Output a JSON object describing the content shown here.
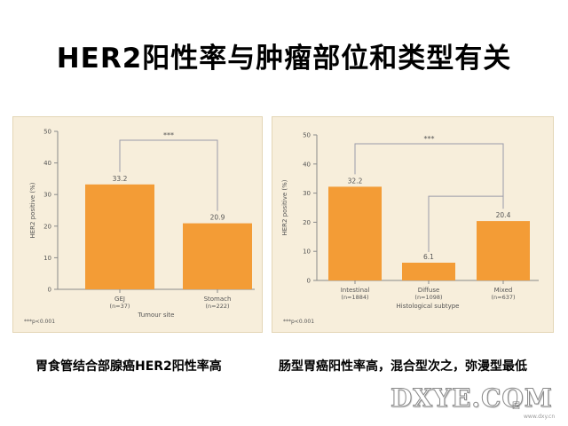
{
  "page": {
    "title": "HER2阳性率与肿瘤部位和类型有关",
    "caption_left": "胃食管结合部腺癌HER2阳性率高",
    "caption_right": "肠型胃癌阳性率高，混合型次之，弥漫型最低",
    "watermark": "DXYE.COM",
    "watermark_tag": "园",
    "watermark_url": "www.dxy.cn"
  },
  "colors": {
    "bar": "#f39c36",
    "panel_bg": "#f7eedb",
    "axis": "#8a8a8a",
    "text": "#555555",
    "bracket": "#9a9aa8"
  },
  "chart_data": [
    {
      "type": "bar",
      "categories": [
        "GEJ",
        "Stomach"
      ],
      "category_sublabels": [
        "(n=37)",
        "(n=222)"
      ],
      "values": [
        33.2,
        20.9
      ],
      "value_labels": [
        "33.2",
        "20.9"
      ],
      "ylabel": "HER2 positive (%)",
      "xlabel": "Tumour site",
      "ylim": [
        0,
        50
      ],
      "yticks": [
        0,
        10,
        20,
        30,
        40,
        50
      ],
      "significance": [
        {
          "pair": [
            0,
            1
          ],
          "label": "***"
        }
      ],
      "footnote": "***p<0.001",
      "grid": false
    },
    {
      "type": "bar",
      "categories": [
        "Intestinal",
        "Diffuse",
        "Mixed"
      ],
      "category_sublabels": [
        "(n=1884)",
        "(n=1098)",
        "(n=637)"
      ],
      "values": [
        32.2,
        6.1,
        20.4
      ],
      "value_labels": [
        "32.2",
        "6.1",
        "20.4"
      ],
      "ylabel": "HER2 positive (%)",
      "xlabel": "Histological subtype",
      "ylim": [
        0,
        50
      ],
      "yticks": [
        0,
        10,
        20,
        30,
        40,
        50
      ],
      "significance": [
        {
          "pair": [
            0,
            2
          ],
          "label": "***"
        },
        {
          "pair": [
            1,
            2
          ],
          "label": ""
        }
      ],
      "footnote": "***p<0.001",
      "grid": false
    }
  ]
}
